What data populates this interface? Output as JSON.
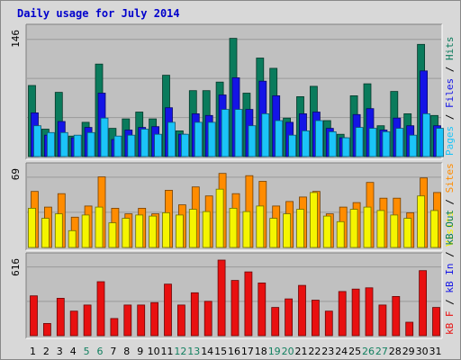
{
  "title": "Daily usage for July 2014",
  "colors": {
    "title": "#0000cc",
    "background": "#d8d8d8",
    "plot_background": "#c0c0c0",
    "grid": "#9a9a9a",
    "pages": "#1bc4f8",
    "files": "#1414e6",
    "hits": "#0a7b5c",
    "visits": "#f5f500",
    "sites": "#ff8c00",
    "kb": "#e81010",
    "kb_in": "#1414e6",
    "kb_out": "#0a7b5c",
    "weekend_day": "#128060",
    "weekday_day": "#000000"
  },
  "chart_data": [
    {
      "type": "bar",
      "name_label": "Pages / Files / Hits",
      "ymax_label": "146",
      "ylim": [
        0,
        146
      ],
      "categories": [
        "1",
        "2",
        "3",
        "4",
        "5",
        "6",
        "7",
        "8",
        "9",
        "10",
        "11",
        "12",
        "13",
        "14",
        "15",
        "16",
        "17",
        "18",
        "19",
        "20",
        "21",
        "22",
        "23",
        "24",
        "25",
        "26",
        "27",
        "28",
        "29",
        "30",
        "31"
      ],
      "series": [
        {
          "name": "Hits",
          "color_key": "hits",
          "values": [
            83,
            32,
            75,
            24,
            40,
            108,
            33,
            44,
            52,
            44,
            95,
            30,
            77,
            77,
            87,
            138,
            74,
            115,
            103,
            45,
            70,
            82,
            42,
            26,
            71,
            85,
            36,
            76,
            50,
            131,
            48
          ]
        },
        {
          "name": "Files",
          "color_key": "files",
          "values": [
            51,
            25,
            41,
            22,
            34,
            74,
            20,
            31,
            34,
            35,
            57,
            26,
            50,
            48,
            72,
            92,
            55,
            88,
            71,
            40,
            50,
            52,
            33,
            22,
            49,
            56,
            31,
            45,
            36,
            100,
            36
          ]
        },
        {
          "name": "Pages",
          "color_key": "pages",
          "values": [
            36,
            28,
            28,
            25,
            28,
            45,
            24,
            25,
            32,
            26,
            40,
            26,
            40,
            40,
            55,
            55,
            36,
            50,
            42,
            25,
            30,
            42,
            29,
            22,
            34,
            33,
            29,
            33,
            25,
            50,
            33
          ]
        }
      ],
      "legend": [
        {
          "text": "Pages",
          "color_key": "pages"
        },
        {
          "text": "Files",
          "color_key": "files"
        },
        {
          "text": "Hits",
          "color_key": "hits"
        }
      ]
    },
    {
      "type": "bar",
      "name_label": "Visits / Sites",
      "ymax_label": "69",
      "ylim": [
        0,
        69
      ],
      "categories": [
        "1",
        "2",
        "3",
        "4",
        "5",
        "6",
        "7",
        "8",
        "9",
        "10",
        "11",
        "12",
        "13",
        "14",
        "15",
        "16",
        "17",
        "18",
        "19",
        "20",
        "21",
        "22",
        "23",
        "24",
        "25",
        "26",
        "27",
        "28",
        "29",
        "30",
        "31"
      ],
      "series": [
        {
          "name": "Sites",
          "color_key": "sites",
          "values": [
            50,
            36,
            48,
            27,
            37,
            63,
            35,
            30,
            35,
            30,
            51,
            38,
            54,
            46,
            66,
            48,
            64,
            59,
            37,
            41,
            45,
            50,
            30,
            36,
            40,
            58,
            44,
            44,
            31,
            62,
            49
          ]
        },
        {
          "name": "Visits",
          "color_key": "visits",
          "values": [
            35,
            26,
            30,
            15,
            29,
            36,
            22,
            26,
            29,
            28,
            31,
            29,
            34,
            32,
            52,
            35,
            32,
            37,
            26,
            30,
            34,
            49,
            28,
            23,
            34,
            36,
            33,
            29,
            26,
            46,
            33
          ]
        }
      ],
      "legend": [
        {
          "text": "Visits",
          "color_key": "visits"
        },
        {
          "text": "Sites",
          "color_key": "sites"
        }
      ]
    },
    {
      "type": "bar",
      "name_label": "kB F / kB In / kB Out",
      "ymax_label": "616",
      "ylim": [
        0,
        616
      ],
      "categories": [
        "1",
        "2",
        "3",
        "4",
        "5",
        "6",
        "7",
        "8",
        "9",
        "10",
        "11",
        "12",
        "13",
        "14",
        "15",
        "16",
        "17",
        "18",
        "19",
        "20",
        "21",
        "22",
        "23",
        "24",
        "25",
        "26",
        "27",
        "28",
        "29",
        "30",
        "31"
      ],
      "series": [
        {
          "name": "kB F",
          "color_key": "kb",
          "values": [
            325,
            100,
            305,
            200,
            250,
            440,
            140,
            250,
            250,
            270,
            420,
            250,
            350,
            280,
            616,
            450,
            520,
            430,
            230,
            300,
            410,
            290,
            200,
            360,
            380,
            390,
            250,
            320,
            110,
            530,
            230
          ]
        }
      ],
      "legend": [
        {
          "text": "kB F",
          "color_key": "kb"
        },
        {
          "text": "kB In",
          "color_key": "kb_in"
        },
        {
          "text": "kB Out",
          "color_key": "kb_out"
        }
      ]
    }
  ],
  "weekend_days": [
    "5",
    "6",
    "12",
    "13",
    "19",
    "20",
    "26",
    "27"
  ]
}
